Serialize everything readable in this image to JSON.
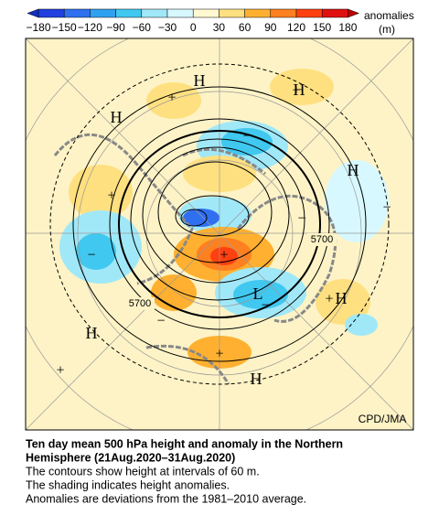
{
  "colorbar": {
    "labels": [
      "−180",
      "−150",
      "−120",
      "−90",
      "−60",
      "−30",
      "0",
      "30",
      "60",
      "90",
      "120",
      "150",
      "180"
    ],
    "title": [
      "anomalies",
      "(m)"
    ]
  },
  "map": {
    "symbols": [
      "H",
      "+",
      "H",
      "H",
      "+",
      "H",
      "+",
      "−",
      "−",
      "−",
      "+",
      "L",
      "−",
      "+",
      "H",
      "−",
      "H",
      "+",
      "+",
      "H",
      "−"
    ],
    "contour_labels": [
      "5700",
      "5700"
    ],
    "credit": "CPD/JMA"
  },
  "caption": {
    "title_lines": [
      "Ten day mean 500 hPa height and anomaly in the Northern",
      "Hemisphere (21Aug.2020–31Aug.2020)"
    ],
    "lines": [
      "The contours show height at intervals of 60 m.",
      "The shading indicates height anomalies.",
      "Anomalies are deviations from the 1981–2010 average."
    ]
  }
}
